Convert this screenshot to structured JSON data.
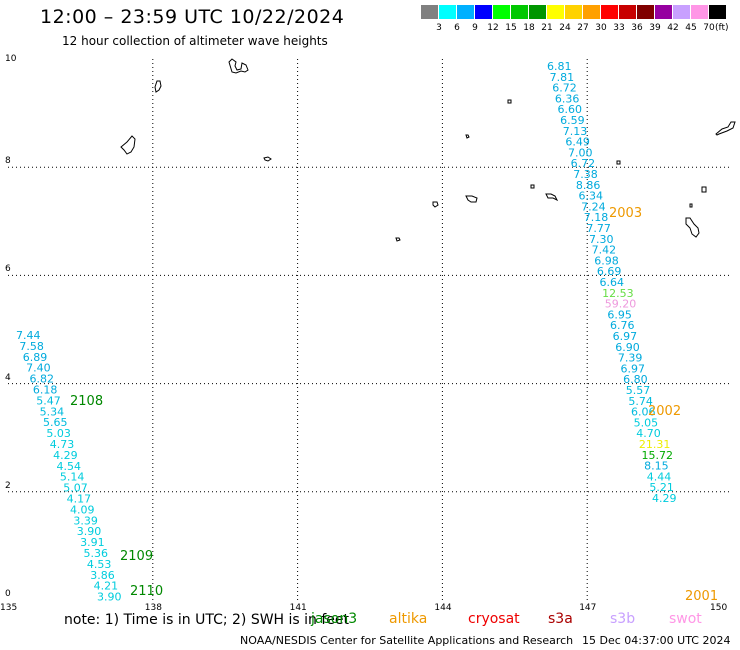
{
  "header": {
    "title": "12:00 – 23:59 UTC 10/22/2024",
    "subtitle": "12 hour collection of altimeter wave heights"
  },
  "colorbar": {
    "unit": "(ft)",
    "stops": [
      {
        "label": "3",
        "color": "#808080"
      },
      {
        "label": "6",
        "color": "#00ffff"
      },
      {
        "label": "9",
        "color": "#00b0ff"
      },
      {
        "label": "12",
        "color": "#0000ff"
      },
      {
        "label": "15",
        "color": "#00ff00"
      },
      {
        "label": "18",
        "color": "#00c800"
      },
      {
        "label": "21",
        "color": "#009600"
      },
      {
        "label": "24",
        "color": "#ffff00"
      },
      {
        "label": "27",
        "color": "#ffd200"
      },
      {
        "label": "30",
        "color": "#ffa000"
      },
      {
        "label": "33",
        "color": "#ff0000"
      },
      {
        "label": "36",
        "color": "#c80000"
      },
      {
        "label": "39",
        "color": "#800000"
      },
      {
        "label": "42",
        "color": "#9600a0"
      },
      {
        "label": "45",
        "color": "#c8a0ff"
      },
      {
        "label": "70",
        "color": "#ff96e6"
      },
      {
        "label": "",
        "color": "#000000"
      }
    ]
  },
  "axes": {
    "x_ticks": [
      "135",
      "138",
      "141",
      "144",
      "147",
      "150"
    ],
    "y_ticks": [
      "0",
      "2",
      "4",
      "6",
      "8",
      "10"
    ]
  },
  "tracks": {
    "east": [
      {
        "v": "6.81",
        "c": "#00aadd"
      },
      {
        "v": "7.81",
        "c": "#00aadd"
      },
      {
        "v": "6.72",
        "c": "#00aadd"
      },
      {
        "v": "6.36",
        "c": "#00aadd"
      },
      {
        "v": "6.60",
        "c": "#00aadd"
      },
      {
        "v": "6.59",
        "c": "#00aadd"
      },
      {
        "v": "7.13",
        "c": "#00aadd"
      },
      {
        "v": "6.49",
        "c": "#00aadd"
      },
      {
        "v": "7.00",
        "c": "#00aadd"
      },
      {
        "v": "6.72",
        "c": "#00aadd"
      },
      {
        "v": "7.38",
        "c": "#00aadd"
      },
      {
        "v": "8.86",
        "c": "#00aadd"
      },
      {
        "v": "6.34",
        "c": "#00aadd"
      },
      {
        "v": "7.24",
        "c": "#00aadd"
      },
      {
        "v": "7.18",
        "c": "#00aadd"
      },
      {
        "v": "7.77",
        "c": "#00aadd"
      },
      {
        "v": "7.30",
        "c": "#00aadd"
      },
      {
        "v": "7.42",
        "c": "#00aadd"
      },
      {
        "v": "6.98",
        "c": "#00aadd"
      },
      {
        "v": "6.69",
        "c": "#00aadd"
      },
      {
        "v": "6.64",
        "c": "#00aadd"
      },
      {
        "v": "12.53",
        "c": "#66dd44"
      },
      {
        "v": "59.20",
        "c": "#ee99dd"
      },
      {
        "v": "6.95",
        "c": "#00aadd"
      },
      {
        "v": "6.76",
        "c": "#00aadd"
      },
      {
        "v": "6.97",
        "c": "#00aadd"
      },
      {
        "v": "6.90",
        "c": "#00aadd"
      },
      {
        "v": "7.39",
        "c": "#00aadd"
      },
      {
        "v": "6.97",
        "c": "#00aadd"
      },
      {
        "v": "6.80",
        "c": "#00aadd"
      },
      {
        "v": "5.57",
        "c": "#00bbdd"
      },
      {
        "v": "5.74",
        "c": "#00bbdd"
      },
      {
        "v": "6.06",
        "c": "#00bbdd"
      },
      {
        "v": "5.05",
        "c": "#00ccdd"
      },
      {
        "v": "4.70",
        "c": "#00ccdd"
      },
      {
        "v": "21.31",
        "c": "#eeee00"
      },
      {
        "v": "15.72",
        "c": "#00aa00"
      },
      {
        "v": "8.15",
        "c": "#00aadd"
      },
      {
        "v": "4.44",
        "c": "#00ccdd"
      },
      {
        "v": "5.21",
        "c": "#00ccdd"
      },
      {
        "v": "4.29",
        "c": "#00ccdd"
      }
    ],
    "west": [
      {
        "v": "7.44",
        "c": "#00aadd"
      },
      {
        "v": "7.58",
        "c": "#00aadd"
      },
      {
        "v": "6.89",
        "c": "#00aadd"
      },
      {
        "v": "7.40",
        "c": "#00aadd"
      },
      {
        "v": "6.82",
        "c": "#00aadd"
      },
      {
        "v": "6.18",
        "c": "#00aadd"
      },
      {
        "v": "5.47",
        "c": "#00bbdd"
      },
      {
        "v": "5.34",
        "c": "#00bbdd"
      },
      {
        "v": "5.65",
        "c": "#00bbdd"
      },
      {
        "v": "5.03",
        "c": "#00ccdd"
      },
      {
        "v": "4.73",
        "c": "#00ccdd"
      },
      {
        "v": "4.29",
        "c": "#00ccdd"
      },
      {
        "v": "4.54",
        "c": "#00ccdd"
      },
      {
        "v": "5.14",
        "c": "#00ccdd"
      },
      {
        "v": "5.07",
        "c": "#00ccdd"
      },
      {
        "v": "4.17",
        "c": "#00ccdd"
      },
      {
        "v": "4.09",
        "c": "#00ccdd"
      },
      {
        "v": "3.39",
        "c": "#00ccdd"
      },
      {
        "v": "3.90",
        "c": "#00ccdd"
      },
      {
        "v": "3.91",
        "c": "#00ccdd"
      },
      {
        "v": "5.36",
        "c": "#00ccdd"
      },
      {
        "v": "4.53",
        "c": "#00ccdd"
      },
      {
        "v": "3.86",
        "c": "#00ccdd"
      },
      {
        "v": "4.21",
        "c": "#00ccdd"
      },
      {
        "v": "3.90",
        "c": "#00ccdd"
      }
    ],
    "time_labels": [
      {
        "t": "2003",
        "c": "#ee9900"
      },
      {
        "t": "2002",
        "c": "#ee9900"
      },
      {
        "t": "2001",
        "c": "#ee9900"
      },
      {
        "t": "2108",
        "c": "#008800"
      },
      {
        "t": "2109",
        "c": "#008800"
      },
      {
        "t": "2110",
        "c": "#008800"
      }
    ]
  },
  "note": "note:  1) Time is in UTC; 2) SWH is in feet",
  "legend": [
    {
      "name": "jason3",
      "color": "#008800"
    },
    {
      "name": "altika",
      "color": "#ee9900"
    },
    {
      "name": "cryosat",
      "color": "#ee0000"
    },
    {
      "name": "s3a",
      "color": "#aa0000"
    },
    {
      "name": "s3b",
      "color": "#c8a0ff"
    },
    {
      "name": "swot",
      "color": "#ff96e6"
    }
  ],
  "footer": {
    "org": "NOAA/NESDIS Center for Satellite Applications and Research",
    "timestamp": "15 Dec 04:37:00 UTC 2024"
  }
}
